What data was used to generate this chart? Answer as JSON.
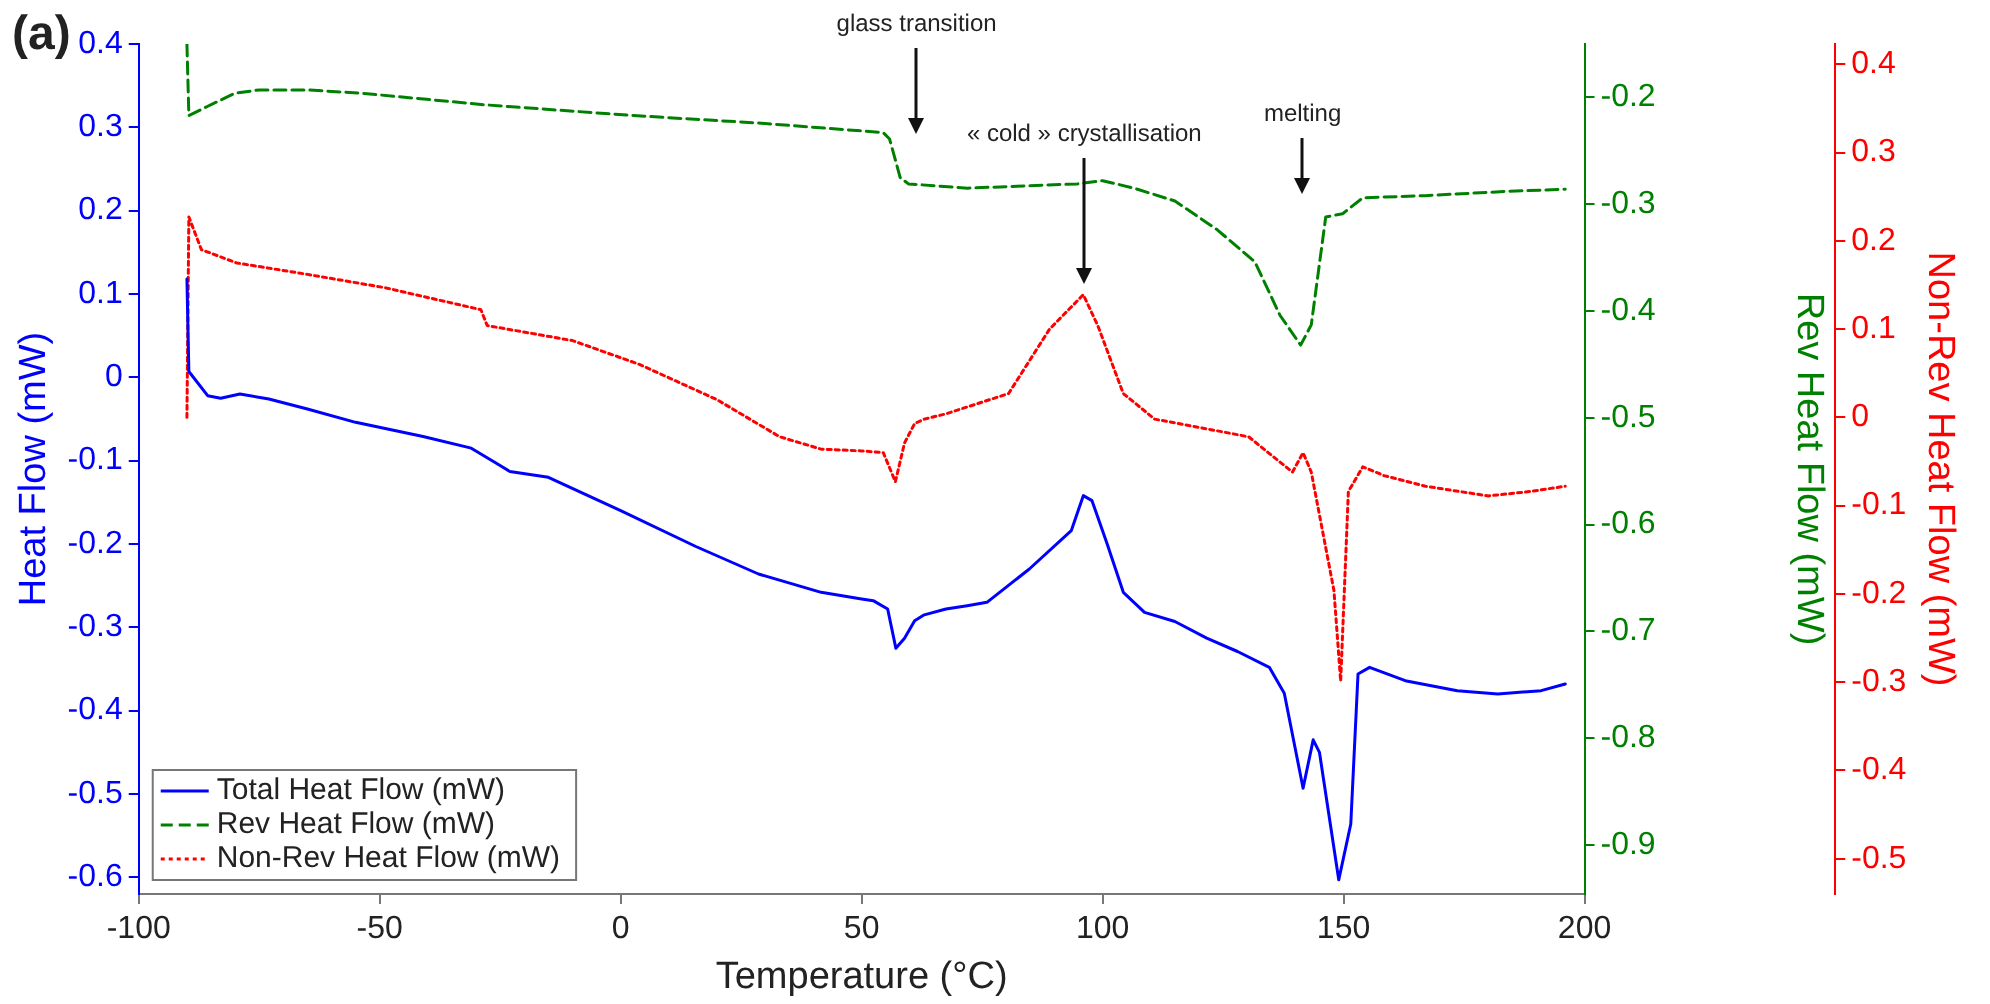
{
  "chart_data": {
    "type": "line",
    "title": "(a)",
    "xlabel": "Temperature (°C)",
    "ylabel": "Heat Flow (mW)",
    "y2label": "Rev Heat Flow (mW)",
    "y3label": "Non-Rev Heat Flow (mW)",
    "xlim": [
      -100,
      200
    ],
    "xticks": [
      -100,
      -50,
      0,
      50,
      100,
      150,
      200
    ],
    "ylim": [
      -0.62,
      0.4
    ],
    "yticks": [
      -0.6,
      -0.5,
      -0.4,
      -0.3,
      -0.2,
      -0.1,
      0,
      0.1,
      0.2,
      0.3,
      0.4
    ],
    "y2lim": [
      -0.946,
      -0.15
    ],
    "y2ticks": [
      -0.9,
      -0.8,
      -0.7,
      -0.6,
      -0.5,
      -0.4,
      -0.3,
      -0.2
    ],
    "y3lim": [
      -0.54,
      0.423
    ],
    "y3ticks": [
      -0.5,
      -0.4,
      -0.3,
      -0.2,
      -0.1,
      0,
      0.1,
      0.2,
      0.3,
      0.4
    ],
    "grid": false,
    "legend": "bottom left",
    "marker": "none",
    "annotations": [
      "glass transition",
      "« cold » crystallisation",
      "melting"
    ],
    "series": [
      {
        "name": "Total Heat Flow (mW)",
        "color": "#0000ff",
        "line_style": "solid",
        "axis": "y",
        "x": [
          -90,
          -89.6,
          -85.7,
          -83,
          -79,
          -73,
          -65,
          -55,
          -41,
          -31,
          -26.4,
          -23,
          -15,
          0,
          15.6,
          28.6,
          41.6,
          50,
          52.4,
          55.4,
          57.1,
          58.9,
          61,
          63,
          67.5,
          71.9,
          76,
          84.8,
          93.5,
          96,
          97.8,
          100.9,
          104.3,
          108.7,
          115,
          121.6,
          128,
          134.6,
          137.7,
          141.6,
          143.7,
          145,
          149,
          151.5,
          153,
          155.4,
          162.8,
          173.6,
          182,
          191,
          196
        ],
        "values": [
          0.118,
          0.007,
          -0.022,
          -0.025,
          -0.02,
          -0.026,
          -0.038,
          -0.054,
          -0.071,
          -0.085,
          -0.101,
          -0.113,
          -0.12,
          -0.16,
          -0.203,
          -0.236,
          -0.258,
          -0.266,
          -0.268,
          -0.278,
          -0.325,
          -0.313,
          -0.292,
          -0.285,
          -0.278,
          -0.274,
          -0.27,
          -0.23,
          -0.184,
          -0.142,
          -0.148,
          -0.199,
          -0.258,
          -0.282,
          -0.293,
          -0.313,
          -0.329,
          -0.348,
          -0.379,
          -0.493,
          -0.435,
          -0.45,
          -0.603,
          -0.536,
          -0.356,
          -0.348,
          -0.364,
          -0.376,
          -0.38,
          -0.376,
          -0.368
        ]
      },
      {
        "name": "Rev Heat Flow (mW)",
        "color": "#008000",
        "line_style": "dashed",
        "axis": "y2",
        "x": [
          -90,
          -89.6,
          -86,
          -80,
          -75,
          -65,
          -54,
          -28,
          2.6,
          28.6,
          54.5,
          55.8,
          58,
          59.7,
          72,
          94.8,
          100,
          106.5,
          115,
          123.8,
          131.6,
          136.8,
          141.1,
          143.3,
          146.3,
          149.8,
          154,
          167,
          184,
          196
        ],
        "values": [
          -0.15,
          -0.217,
          -0.209,
          -0.196,
          -0.193,
          -0.193,
          -0.196,
          -0.207,
          -0.217,
          -0.224,
          -0.233,
          -0.239,
          -0.275,
          -0.281,
          -0.285,
          -0.281,
          -0.278,
          -0.285,
          -0.297,
          -0.324,
          -0.354,
          -0.404,
          -0.432,
          -0.413,
          -0.312,
          -0.309,
          -0.294,
          -0.292,
          -0.288,
          -0.286
        ]
      },
      {
        "name": "Non-Rev Heat Flow (mW)",
        "color": "#ff0000",
        "line_style": "dotted",
        "axis": "y3",
        "x": [
          -90,
          -89.6,
          -87,
          -79.7,
          -65,
          -49,
          -29,
          -27.7,
          -10,
          3.9,
          20,
          33,
          41.6,
          50,
          54.5,
          57,
          58.9,
          61,
          63,
          67.5,
          80.5,
          89,
          96,
          99,
          104.3,
          110.8,
          121.6,
          130.3,
          139.4,
          141.6,
          143.3,
          148,
          149.4,
          151,
          154,
          158.4,
          167,
          180,
          188.7,
          196
        ],
        "values": [
          0,
          0.227,
          0.19,
          0.175,
          0.162,
          0.147,
          0.122,
          0.104,
          0.087,
          0.06,
          0.02,
          -0.022,
          -0.036,
          -0.038,
          -0.04,
          -0.073,
          -0.029,
          -0.007,
          -0.002,
          0.004,
          0.027,
          0.1,
          0.139,
          0.104,
          0.027,
          -0.002,
          -0.013,
          -0.022,
          -0.062,
          -0.04,
          -0.062,
          -0.196,
          -0.299,
          -0.084,
          -0.056,
          -0.066,
          -0.078,
          -0.089,
          -0.084,
          -0.078
        ]
      }
    ]
  }
}
